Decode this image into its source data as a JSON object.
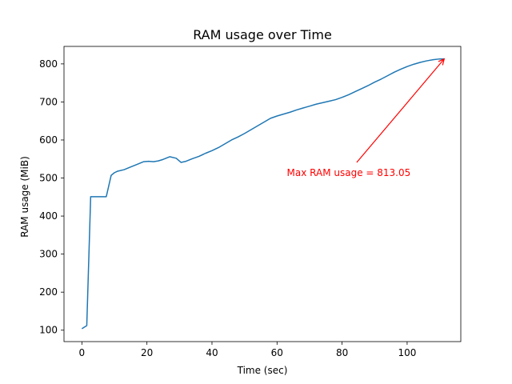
{
  "chart_data": {
    "type": "line",
    "title": "RAM usage over Time",
    "xlabel": "Time (sec)",
    "ylabel": "RAM usage (MiB)",
    "xlim": [
      -5.5,
      116.5
    ],
    "ylim": [
      70,
      846
    ],
    "xticks": [
      0,
      20,
      40,
      60,
      80,
      100
    ],
    "yticks": [
      100,
      200,
      300,
      400,
      500,
      600,
      700,
      800
    ],
    "grid": false,
    "series": [
      {
        "color": "#1f77b4",
        "x": [
          0,
          1.5,
          2.7,
          4,
          5.5,
          7.5,
          9,
          10,
          11,
          13,
          15,
          17,
          19,
          20.5,
          22,
          23.5,
          25,
          27,
          29,
          30.5,
          32,
          34,
          36,
          38,
          40,
          42,
          44,
          46,
          48,
          50,
          52,
          54,
          56,
          58,
          60,
          62,
          64,
          66,
          68,
          70,
          72,
          74,
          76,
          78,
          80,
          82,
          84,
          86,
          88,
          90,
          92,
          94,
          96,
          98,
          100,
          102,
          104,
          106,
          108,
          110,
          111.4
        ],
        "y": [
          104,
          112,
          451,
          451,
          451,
          451,
          507,
          514,
          518,
          522,
          529,
          536,
          543,
          544,
          543,
          545,
          549,
          556,
          552,
          541,
          544,
          551,
          557,
          565,
          572,
          580,
          590,
          600,
          608,
          617,
          627,
          637,
          647,
          657,
          663,
          668,
          673,
          679,
          684,
          689,
          694,
          698,
          702,
          706,
          712,
          719,
          727,
          735,
          743,
          752,
          760,
          769,
          778,
          786,
          793,
          799,
          804,
          808,
          811,
          813,
          813.05
        ]
      }
    ],
    "annotation": {
      "text": "Max RAM usage = 813.05",
      "color": "#ff0000",
      "point": [
        111.4,
        813.05
      ],
      "text_anchor_point": [
        84.5,
        541
      ]
    }
  }
}
